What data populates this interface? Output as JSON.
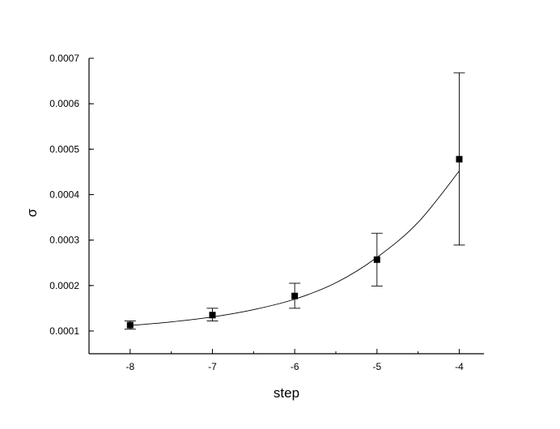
{
  "chart_data": {
    "type": "scatter",
    "xlabel": "step",
    "ylabel": "σ",
    "xlim": [
      -8.5,
      -3.7
    ],
    "ylim": [
      5e-05,
      0.0007
    ],
    "x_ticks": [
      -8,
      -7,
      -6,
      -5,
      -4
    ],
    "x_tick_labels": [
      "-8",
      "-7",
      "-6",
      "-5",
      "-4"
    ],
    "y_ticks": [
      0.0001,
      0.0002,
      0.0003,
      0.0004,
      0.0005,
      0.0006,
      0.0007
    ],
    "y_tick_labels": [
      "0.0001",
      "0.0002",
      "0.0003",
      "0.0004",
      "0.0005",
      "0.0006",
      "0.0007"
    ],
    "grid": false,
    "legend": "none",
    "points": [
      {
        "x": -8,
        "y": 0.000113,
        "err_low": 0.000104,
        "err_high": 0.000122
      },
      {
        "x": -7,
        "y": 0.000135,
        "err_low": 0.000122,
        "err_high": 0.00015
      },
      {
        "x": -6,
        "y": 0.000177,
        "err_low": 0.00015,
        "err_high": 0.000205
      },
      {
        "x": -5,
        "y": 0.000257,
        "err_low": 0.000199,
        "err_high": 0.000315
      },
      {
        "x": -4,
        "y": 0.000478,
        "err_low": 0.000289,
        "err_high": 0.000668
      }
    ],
    "fit_curve": [
      {
        "x": -8.0,
        "y": 0.000112
      },
      {
        "x": -7.5,
        "y": 0.00012
      },
      {
        "x": -7.0,
        "y": 0.000131
      },
      {
        "x": -6.5,
        "y": 0.000147
      },
      {
        "x": -6.0,
        "y": 0.00017
      },
      {
        "x": -5.5,
        "y": 0.000206
      },
      {
        "x": -5.0,
        "y": 0.000262
      },
      {
        "x": -4.5,
        "y": 0.000339
      },
      {
        "x": -4.0,
        "y": 0.000452
      }
    ]
  }
}
